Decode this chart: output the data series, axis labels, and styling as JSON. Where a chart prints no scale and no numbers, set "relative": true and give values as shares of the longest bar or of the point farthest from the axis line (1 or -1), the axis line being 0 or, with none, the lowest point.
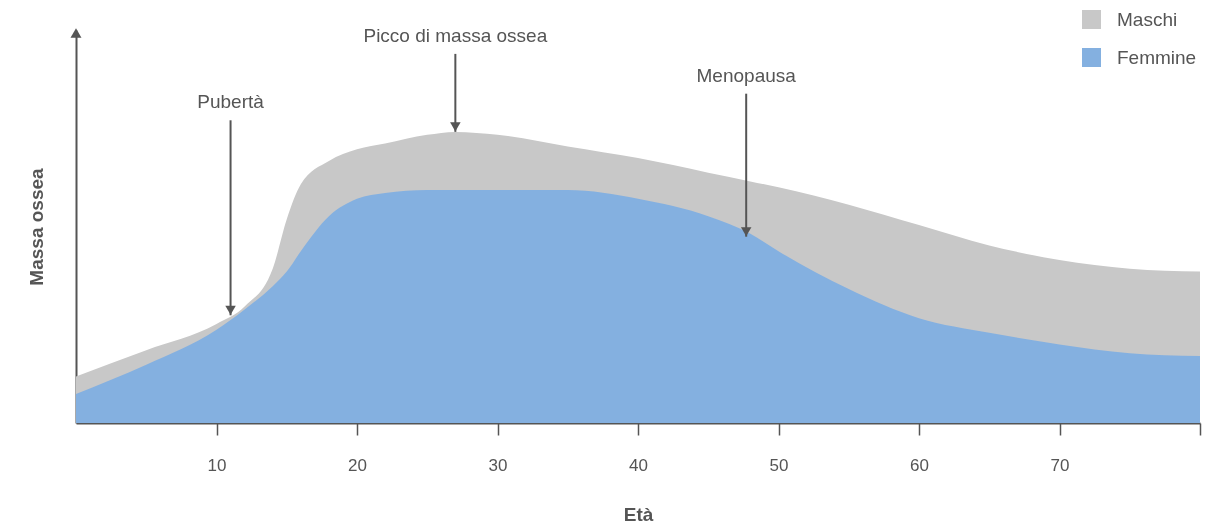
{
  "chart_data": {
    "type": "area",
    "relative": true,
    "xlabel": "Età",
    "ylabel": "Massa ossea",
    "xlim": [
      0,
      80
    ],
    "xticks": [
      10,
      20,
      30,
      40,
      50,
      60,
      70,
      {
        "value": 80,
        "label": null
      }
    ],
    "legend": "top right",
    "grid": false,
    "x": [
      0,
      5,
      10,
      12,
      14,
      15,
      16,
      18,
      20,
      22,
      25,
      27,
      30,
      35,
      40,
      45,
      48,
      50,
      55,
      60,
      65,
      70,
      75,
      80
    ],
    "series": [
      {
        "name": "Maschi",
        "color": "#c8c8c8",
        "values": [
          0.16,
          0.25,
          0.34,
          0.4,
          0.53,
          0.7,
          0.82,
          0.9,
          0.94,
          0.96,
          0.99,
          1,
          0.99,
          0.95,
          0.91,
          0.86,
          0.83,
          0.81,
          0.75,
          0.68,
          0.61,
          0.56,
          0.53,
          0.52
        ]
      },
      {
        "name": "Femmine",
        "color": "#84b0e0",
        "values": [
          0.1,
          0.2,
          0.32,
          0.39,
          0.47,
          0.52,
          0.59,
          0.71,
          0.77,
          0.79,
          0.8,
          0.8,
          0.8,
          0.8,
          0.77,
          0.71,
          0.65,
          0.59,
          0.46,
          0.36,
          0.31,
          0.27,
          0.24,
          0.23
        ]
      }
    ],
    "annotations": [
      {
        "text": "Pubertà",
        "x": 11,
        "y": 0.37
      },
      {
        "text": "Picco di massa ossea",
        "x": 27,
        "y": 1
      },
      {
        "text": "Menopausa",
        "x": 47.7,
        "y": 0.64
      }
    ]
  }
}
